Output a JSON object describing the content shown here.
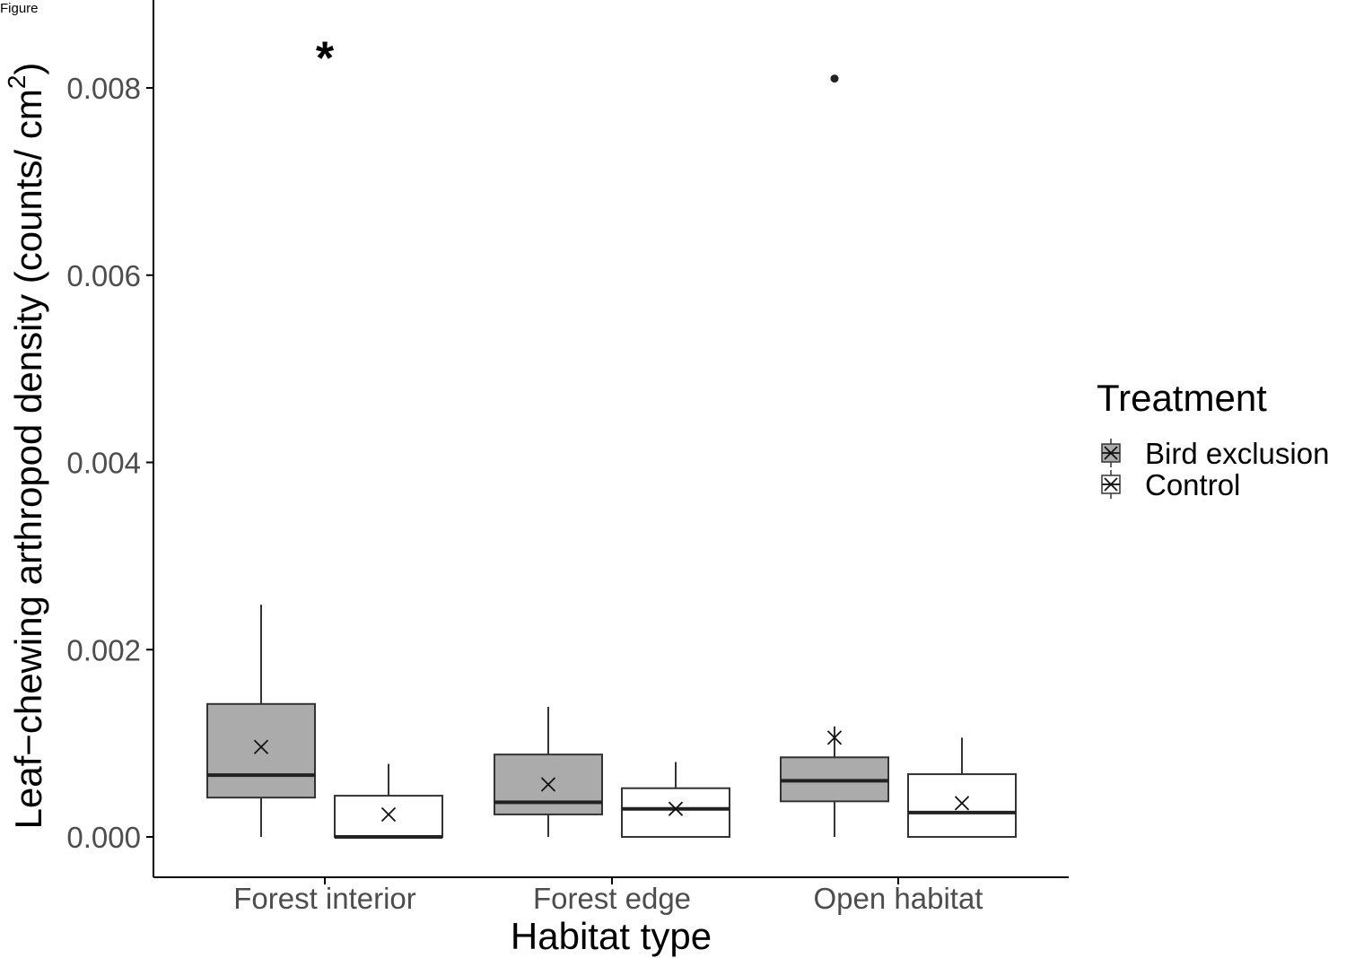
{
  "figure_label": "Figure",
  "chart_data": {
    "type": "boxplot",
    "xlabel": "Habitat type",
    "ylabel": "Leaf−chewing arthropod density (counts/ cm",
    "ylabel_superscript": "2",
    "ylabel_close": ")",
    "categories": [
      "Forest interior",
      "Forest edge",
      "Open habitat"
    ],
    "ylim": [
      -0.00085,
      0.0089
    ],
    "yticks": [
      0,
      0.002,
      0.004,
      0.006,
      0.008
    ],
    "ytick_labels": [
      "0.000",
      "0.002",
      "0.004",
      "0.006",
      "0.008"
    ],
    "grid": false,
    "legend": {
      "title": "Treatment",
      "placement": "right"
    },
    "series": [
      {
        "name": "Bird exclusion",
        "fill": "#ababab",
        "boxes": [
          {
            "whisker_low": 0.0,
            "q1": 0.00042,
            "median": 0.00066,
            "q3": 0.00142,
            "whisker_high": 0.00248,
            "mean": 0.00096,
            "outliers": []
          },
          {
            "whisker_low": 0.0,
            "q1": 0.00024,
            "median": 0.00037,
            "q3": 0.00088,
            "whisker_high": 0.00139,
            "mean": 0.00056,
            "outliers": []
          },
          {
            "whisker_low": 0.0,
            "q1": 0.00038,
            "median": 0.0006,
            "q3": 0.00085,
            "whisker_high": 0.00118,
            "mean": 0.00106,
            "outliers": [
              0.0081
            ]
          }
        ]
      },
      {
        "name": "Control",
        "fill": "#ffffff",
        "boxes": [
          {
            "whisker_low": 0.0,
            "q1": 0.0,
            "median": 0.0,
            "q3": 0.00044,
            "whisker_high": 0.00078,
            "mean": 0.00024,
            "outliers": []
          },
          {
            "whisker_low": 0.0,
            "q1": 0.0,
            "median": 0.0003,
            "q3": 0.00052,
            "whisker_high": 0.0008,
            "mean": 0.0003,
            "outliers": []
          },
          {
            "whisker_low": 0.0,
            "q1": 0.0,
            "median": 0.00026,
            "q3": 0.00067,
            "whisker_high": 0.00106,
            "mean": 0.00036,
            "outliers": []
          }
        ]
      }
    ],
    "annotations": [
      {
        "text": "*",
        "category": "Forest interior",
        "y": 0.0084
      }
    ]
  },
  "colors": {
    "axis": "#000000",
    "box_stroke": "#333333",
    "median": "#222222",
    "tick_text": "#4d4d4d"
  }
}
